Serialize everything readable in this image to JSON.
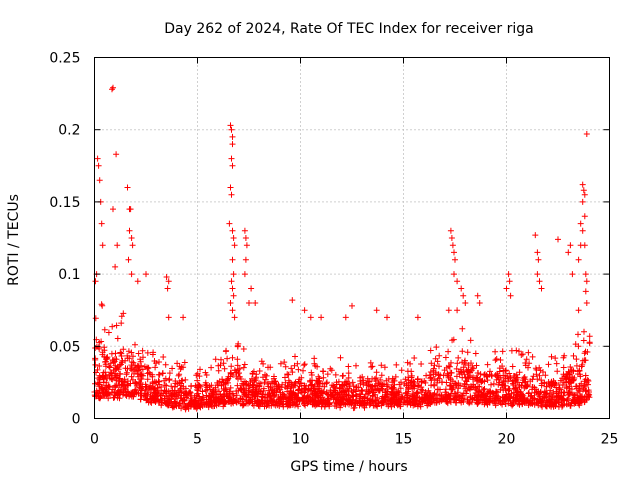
{
  "chart_data": {
    "type": "scatter",
    "title": "Day 262 of 2024, Rate Of TEC Index for receiver riga",
    "xlabel": "GPS time / hours",
    "ylabel": "ROTI / TECUs",
    "xlim": [
      0,
      25
    ],
    "ylim": [
      0,
      0.25
    ],
    "x_ticks": [
      "0",
      "5",
      "10",
      "15",
      "20",
      "25"
    ],
    "y_ticks": [
      "0",
      "0.05",
      "0.1",
      "0.15",
      "0.2",
      "0.25"
    ],
    "grid": true,
    "legend": "none",
    "marker": "plus",
    "color": "#ff0000",
    "series": [
      {
        "description": "dense band of ROTI samples across the day",
        "envelope": [
          {
            "x": 0.0,
            "base": 0.018,
            "upper": 0.1
          },
          {
            "x": 0.5,
            "base": 0.02,
            "upper": 0.08
          },
          {
            "x": 1.0,
            "base": 0.02,
            "upper": 0.07
          },
          {
            "x": 1.5,
            "base": 0.02,
            "upper": 0.08
          },
          {
            "x": 2.0,
            "base": 0.02,
            "upper": 0.07
          },
          {
            "x": 3.0,
            "base": 0.015,
            "upper": 0.05
          },
          {
            "x": 4.0,
            "base": 0.012,
            "upper": 0.045
          },
          {
            "x": 5.0,
            "base": 0.012,
            "upper": 0.04
          },
          {
            "x": 6.0,
            "base": 0.014,
            "upper": 0.045
          },
          {
            "x": 7.0,
            "base": 0.015,
            "upper": 0.06
          },
          {
            "x": 8.0,
            "base": 0.014,
            "upper": 0.05
          },
          {
            "x": 9.0,
            "base": 0.014,
            "upper": 0.045
          },
          {
            "x": 10.0,
            "base": 0.014,
            "upper": 0.045
          },
          {
            "x": 11.0,
            "base": 0.014,
            "upper": 0.045
          },
          {
            "x": 12.0,
            "base": 0.013,
            "upper": 0.045
          },
          {
            "x": 13.0,
            "base": 0.013,
            "upper": 0.045
          },
          {
            "x": 14.0,
            "base": 0.014,
            "upper": 0.045
          },
          {
            "x": 15.0,
            "base": 0.014,
            "upper": 0.045
          },
          {
            "x": 16.0,
            "base": 0.014,
            "upper": 0.05
          },
          {
            "x": 17.0,
            "base": 0.016,
            "upper": 0.06
          },
          {
            "x": 18.0,
            "base": 0.016,
            "upper": 0.065
          },
          {
            "x": 19.0,
            "base": 0.015,
            "upper": 0.05
          },
          {
            "x": 20.0,
            "base": 0.015,
            "upper": 0.055
          },
          {
            "x": 21.0,
            "base": 0.015,
            "upper": 0.05
          },
          {
            "x": 22.0,
            "base": 0.013,
            "upper": 0.045
          },
          {
            "x": 23.0,
            "base": 0.014,
            "upper": 0.055
          },
          {
            "x": 24.0,
            "base": 0.016,
            "upper": 0.07
          }
        ],
        "points": [
          [
            0.15,
            0.18
          ],
          [
            0.2,
            0.175
          ],
          [
            0.25,
            0.165
          ],
          [
            0.3,
            0.15
          ],
          [
            0.35,
            0.135
          ],
          [
            0.4,
            0.12
          ],
          [
            0.1,
            0.1
          ],
          [
            0.05,
            0.095
          ],
          [
            0.85,
            0.228
          ],
          [
            0.9,
            0.229
          ],
          [
            1.05,
            0.183
          ],
          [
            0.9,
            0.145
          ],
          [
            1.1,
            0.12
          ],
          [
            1.0,
            0.105
          ],
          [
            1.6,
            0.16
          ],
          [
            1.7,
            0.145
          ],
          [
            1.75,
            0.145
          ],
          [
            1.7,
            0.13
          ],
          [
            1.8,
            0.125
          ],
          [
            1.85,
            0.12
          ],
          [
            1.65,
            0.11
          ],
          [
            1.8,
            0.1
          ],
          [
            2.1,
            0.095
          ],
          [
            2.5,
            0.1
          ],
          [
            3.5,
            0.098
          ],
          [
            3.6,
            0.095
          ],
          [
            3.55,
            0.09
          ],
          [
            3.6,
            0.07
          ],
          [
            4.3,
            0.07
          ],
          [
            6.6,
            0.203
          ],
          [
            6.65,
            0.2
          ],
          [
            6.7,
            0.195
          ],
          [
            6.7,
            0.19
          ],
          [
            6.65,
            0.18
          ],
          [
            6.7,
            0.175
          ],
          [
            6.6,
            0.16
          ],
          [
            6.65,
            0.155
          ],
          [
            6.55,
            0.135
          ],
          [
            6.7,
            0.13
          ],
          [
            6.75,
            0.125
          ],
          [
            6.8,
            0.12
          ],
          [
            6.7,
            0.11
          ],
          [
            6.75,
            0.1
          ],
          [
            6.65,
            0.095
          ],
          [
            6.7,
            0.09
          ],
          [
            6.75,
            0.085
          ],
          [
            6.6,
            0.08
          ],
          [
            6.7,
            0.075
          ],
          [
            6.8,
            0.07
          ],
          [
            7.3,
            0.13
          ],
          [
            7.35,
            0.125
          ],
          [
            7.4,
            0.12
          ],
          [
            7.35,
            0.11
          ],
          [
            7.3,
            0.1
          ],
          [
            7.5,
            0.08
          ],
          [
            7.6,
            0.09
          ],
          [
            7.8,
            0.08
          ],
          [
            9.6,
            0.082
          ],
          [
            10.2,
            0.075
          ],
          [
            10.5,
            0.07
          ],
          [
            11.0,
            0.07
          ],
          [
            12.2,
            0.07
          ],
          [
            12.5,
            0.078
          ],
          [
            13.7,
            0.075
          ],
          [
            14.2,
            0.07
          ],
          [
            15.7,
            0.07
          ],
          [
            17.3,
            0.13
          ],
          [
            17.35,
            0.125
          ],
          [
            17.4,
            0.12
          ],
          [
            17.45,
            0.115
          ],
          [
            17.5,
            0.11
          ],
          [
            17.45,
            0.1
          ],
          [
            17.6,
            0.095
          ],
          [
            17.8,
            0.09
          ],
          [
            17.9,
            0.085
          ],
          [
            18.0,
            0.08
          ],
          [
            17.2,
            0.075
          ],
          [
            17.6,
            0.075
          ],
          [
            18.6,
            0.085
          ],
          [
            18.7,
            0.08
          ],
          [
            20.0,
            0.09
          ],
          [
            20.1,
            0.1
          ],
          [
            20.15,
            0.095
          ],
          [
            20.2,
            0.085
          ],
          [
            21.4,
            0.127
          ],
          [
            21.5,
            0.115
          ],
          [
            21.55,
            0.11
          ],
          [
            21.5,
            0.1
          ],
          [
            21.6,
            0.095
          ],
          [
            21.7,
            0.09
          ],
          [
            22.5,
            0.124
          ],
          [
            23.0,
            0.115
          ],
          [
            23.1,
            0.12
          ],
          [
            23.2,
            0.1
          ],
          [
            23.5,
            0.11
          ],
          [
            23.6,
            0.12
          ],
          [
            23.7,
            0.162
          ],
          [
            23.75,
            0.158
          ],
          [
            23.8,
            0.155
          ],
          [
            23.7,
            0.15
          ],
          [
            23.8,
            0.14
          ],
          [
            23.6,
            0.135
          ],
          [
            23.7,
            0.13
          ],
          [
            23.8,
            0.12
          ],
          [
            23.9,
            0.197
          ],
          [
            23.85,
            0.1
          ],
          [
            23.9,
            0.095
          ],
          [
            23.85,
            0.088
          ],
          [
            23.9,
            0.08
          ],
          [
            23.5,
            0.075
          ]
        ]
      }
    ]
  }
}
